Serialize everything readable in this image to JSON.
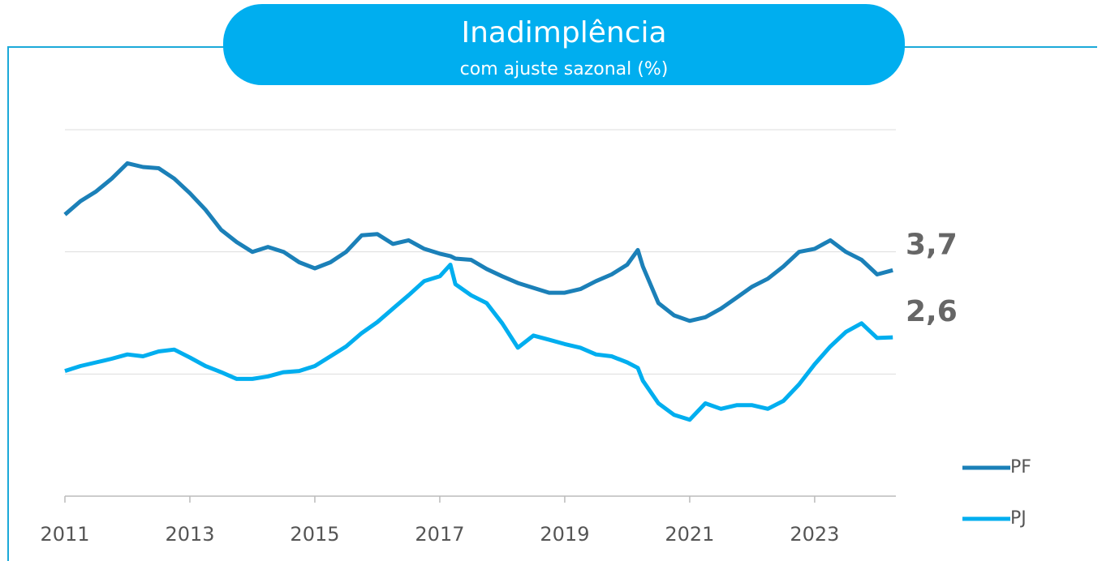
{
  "chart_data": {
    "type": "line",
    "title": "Inadimplência",
    "subtitle": "com ajuste sazonal (%)",
    "xlim": [
      2011,
      2024.3
    ],
    "xticks": [
      2011,
      2013,
      2015,
      2017,
      2019,
      2021,
      2023
    ],
    "ylim": [
      0,
      6
    ],
    "yticks": [
      0,
      2,
      4,
      6
    ],
    "grid": true,
    "legend": "lower right",
    "x": [
      2011.0,
      2011.25,
      2011.5,
      2011.75,
      2012.0,
      2012.25,
      2012.5,
      2012.75,
      2013.0,
      2013.25,
      2013.5,
      2013.75,
      2014.0,
      2014.25,
      2014.5,
      2014.75,
      2015.0,
      2015.25,
      2015.5,
      2015.75,
      2016.0,
      2016.25,
      2016.5,
      2016.75,
      2017.0,
      2017.17,
      2017.25,
      2017.5,
      2017.75,
      2018.0,
      2018.25,
      2018.5,
      2018.75,
      2019.0,
      2019.25,
      2019.5,
      2019.75,
      2020.0,
      2020.17,
      2020.25,
      2020.5,
      2020.75,
      2021.0,
      2021.25,
      2021.5,
      2021.75,
      2022.0,
      2022.25,
      2022.5,
      2022.75,
      2023.0,
      2023.25,
      2023.5,
      2023.75,
      2024.0,
      2024.25
    ],
    "series": [
      {
        "name": "PF",
        "color": "#1b80b8",
        "last_label": "3,7",
        "values": [
          4.61,
          4.83,
          4.99,
          5.2,
          5.45,
          5.39,
          5.37,
          5.2,
          4.96,
          4.69,
          4.36,
          4.16,
          4.0,
          4.08,
          4.0,
          3.83,
          3.73,
          3.83,
          4.0,
          4.27,
          4.29,
          4.13,
          4.19,
          4.05,
          3.97,
          3.93,
          3.89,
          3.87,
          3.72,
          3.6,
          3.49,
          3.41,
          3.33,
          3.33,
          3.39,
          3.52,
          3.63,
          3.79,
          4.03,
          3.76,
          3.16,
          2.96,
          2.87,
          2.93,
          3.07,
          3.25,
          3.43,
          3.56,
          3.76,
          4.0,
          4.05,
          4.19,
          4.0,
          3.87,
          3.63,
          3.7
        ]
      },
      {
        "name": "PJ",
        "color": "#00aeef",
        "last_label": "2,6",
        "values": [
          2.05,
          2.13,
          2.19,
          2.25,
          2.32,
          2.29,
          2.37,
          2.4,
          2.27,
          2.13,
          2.03,
          1.92,
          1.92,
          1.96,
          2.03,
          2.05,
          2.13,
          2.29,
          2.45,
          2.67,
          2.85,
          3.07,
          3.29,
          3.52,
          3.6,
          3.79,
          3.47,
          3.29,
          3.16,
          2.83,
          2.43,
          2.63,
          2.56,
          2.49,
          2.43,
          2.32,
          2.29,
          2.19,
          2.1,
          1.89,
          1.52,
          1.33,
          1.25,
          1.52,
          1.43,
          1.49,
          1.49,
          1.43,
          1.56,
          1.83,
          2.16,
          2.45,
          2.69,
          2.83,
          2.59,
          2.6
        ]
      }
    ]
  }
}
